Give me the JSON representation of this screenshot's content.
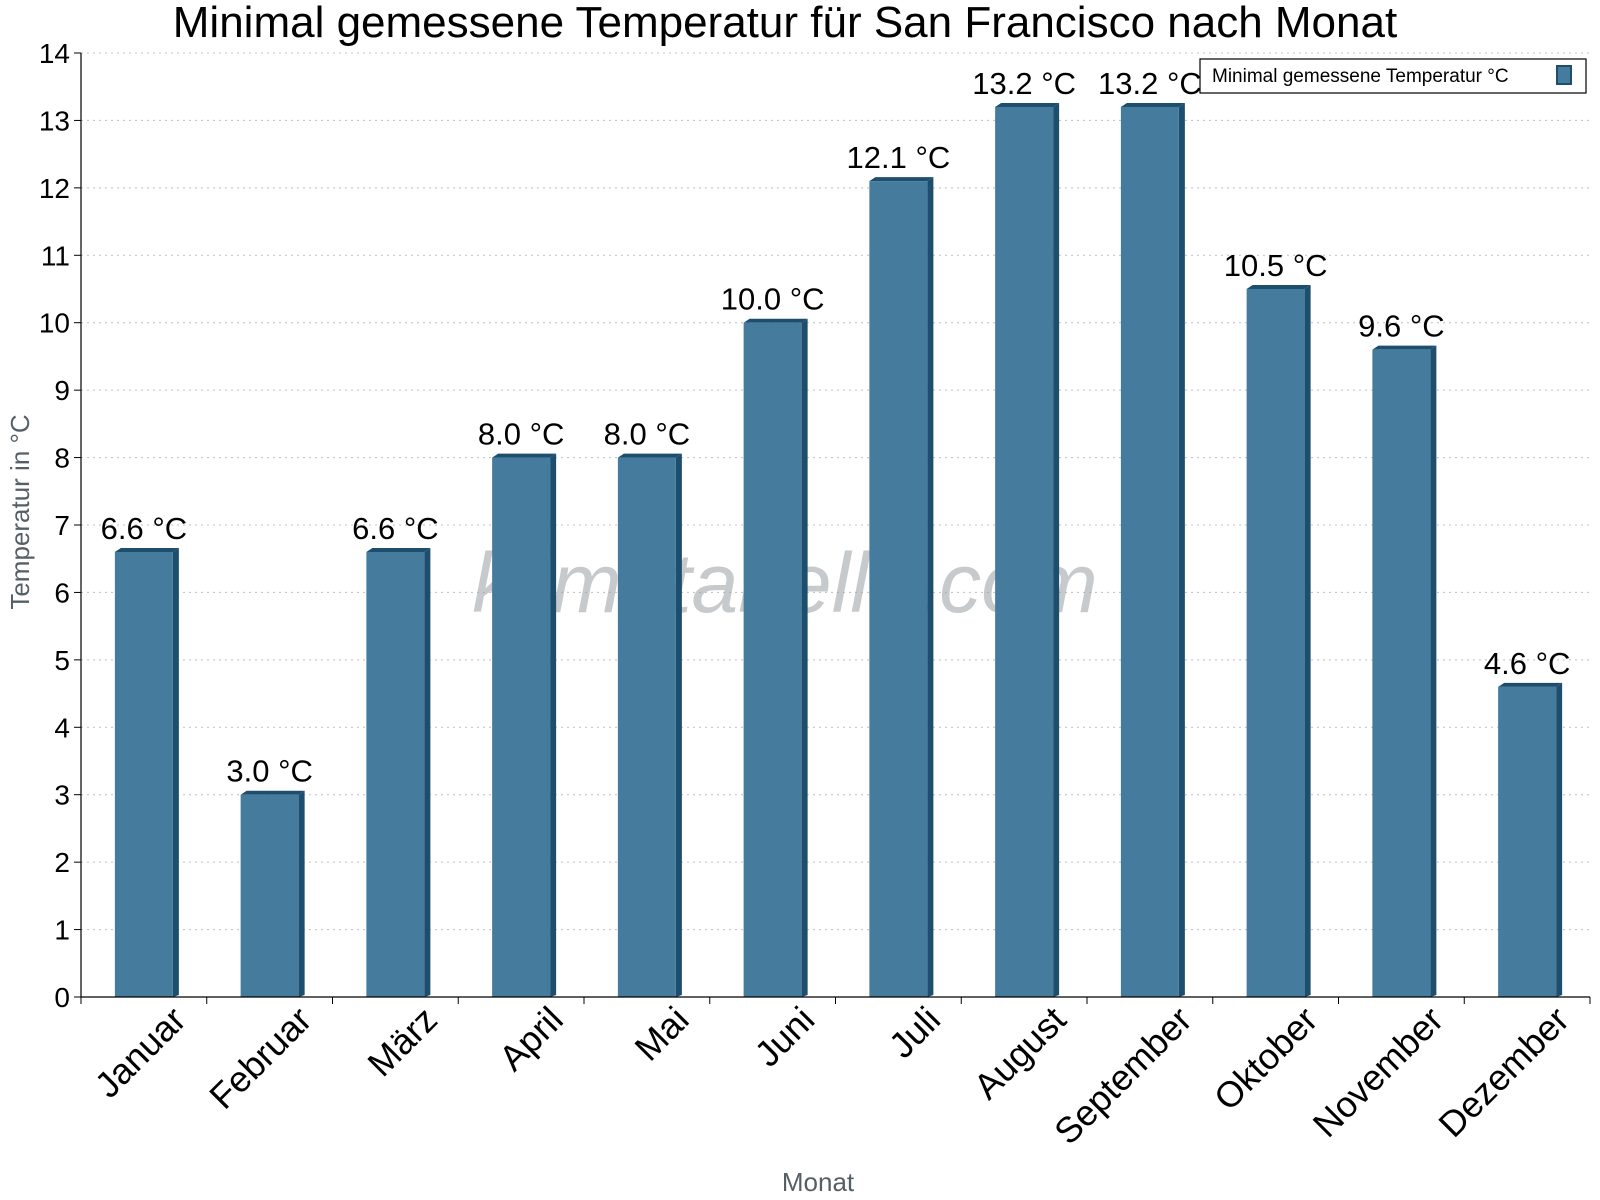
{
  "chart_data": {
    "type": "bar",
    "title": "Minimal gemessene Temperatur für San Francisco nach Monat",
    "xlabel": "Monat",
    "ylabel": "Temperatur in °C",
    "ylim": [
      0,
      14
    ],
    "yticks": [
      0,
      1,
      2,
      3,
      4,
      5,
      6,
      7,
      8,
      9,
      10,
      11,
      12,
      13,
      14
    ],
    "grid": true,
    "legend_position": "top-right",
    "watermark": "klimatabelle.com",
    "categories": [
      "Januar",
      "Februar",
      "März",
      "April",
      "Mai",
      "Juni",
      "Juli",
      "August",
      "September",
      "Oktober",
      "November",
      "Dezember"
    ],
    "series": [
      {
        "name": "Minimal gemessene Temperatur °C",
        "color": "#457b9d",
        "side_color": "#1d4e6e",
        "values": [
          6.6,
          3.0,
          6.6,
          8.0,
          8.0,
          10.0,
          12.1,
          13.2,
          13.2,
          10.5,
          9.6,
          4.6
        ],
        "labels": [
          "6.6 °C",
          "3.0 °C",
          "6.6 °C",
          "8.0 °C",
          "8.0 °C",
          "10.0 °C",
          "12.1 °C",
          "13.2 °C",
          "13.2 °C",
          "10.5 °C",
          "9.6 °C",
          "4.6 °C"
        ]
      }
    ]
  }
}
